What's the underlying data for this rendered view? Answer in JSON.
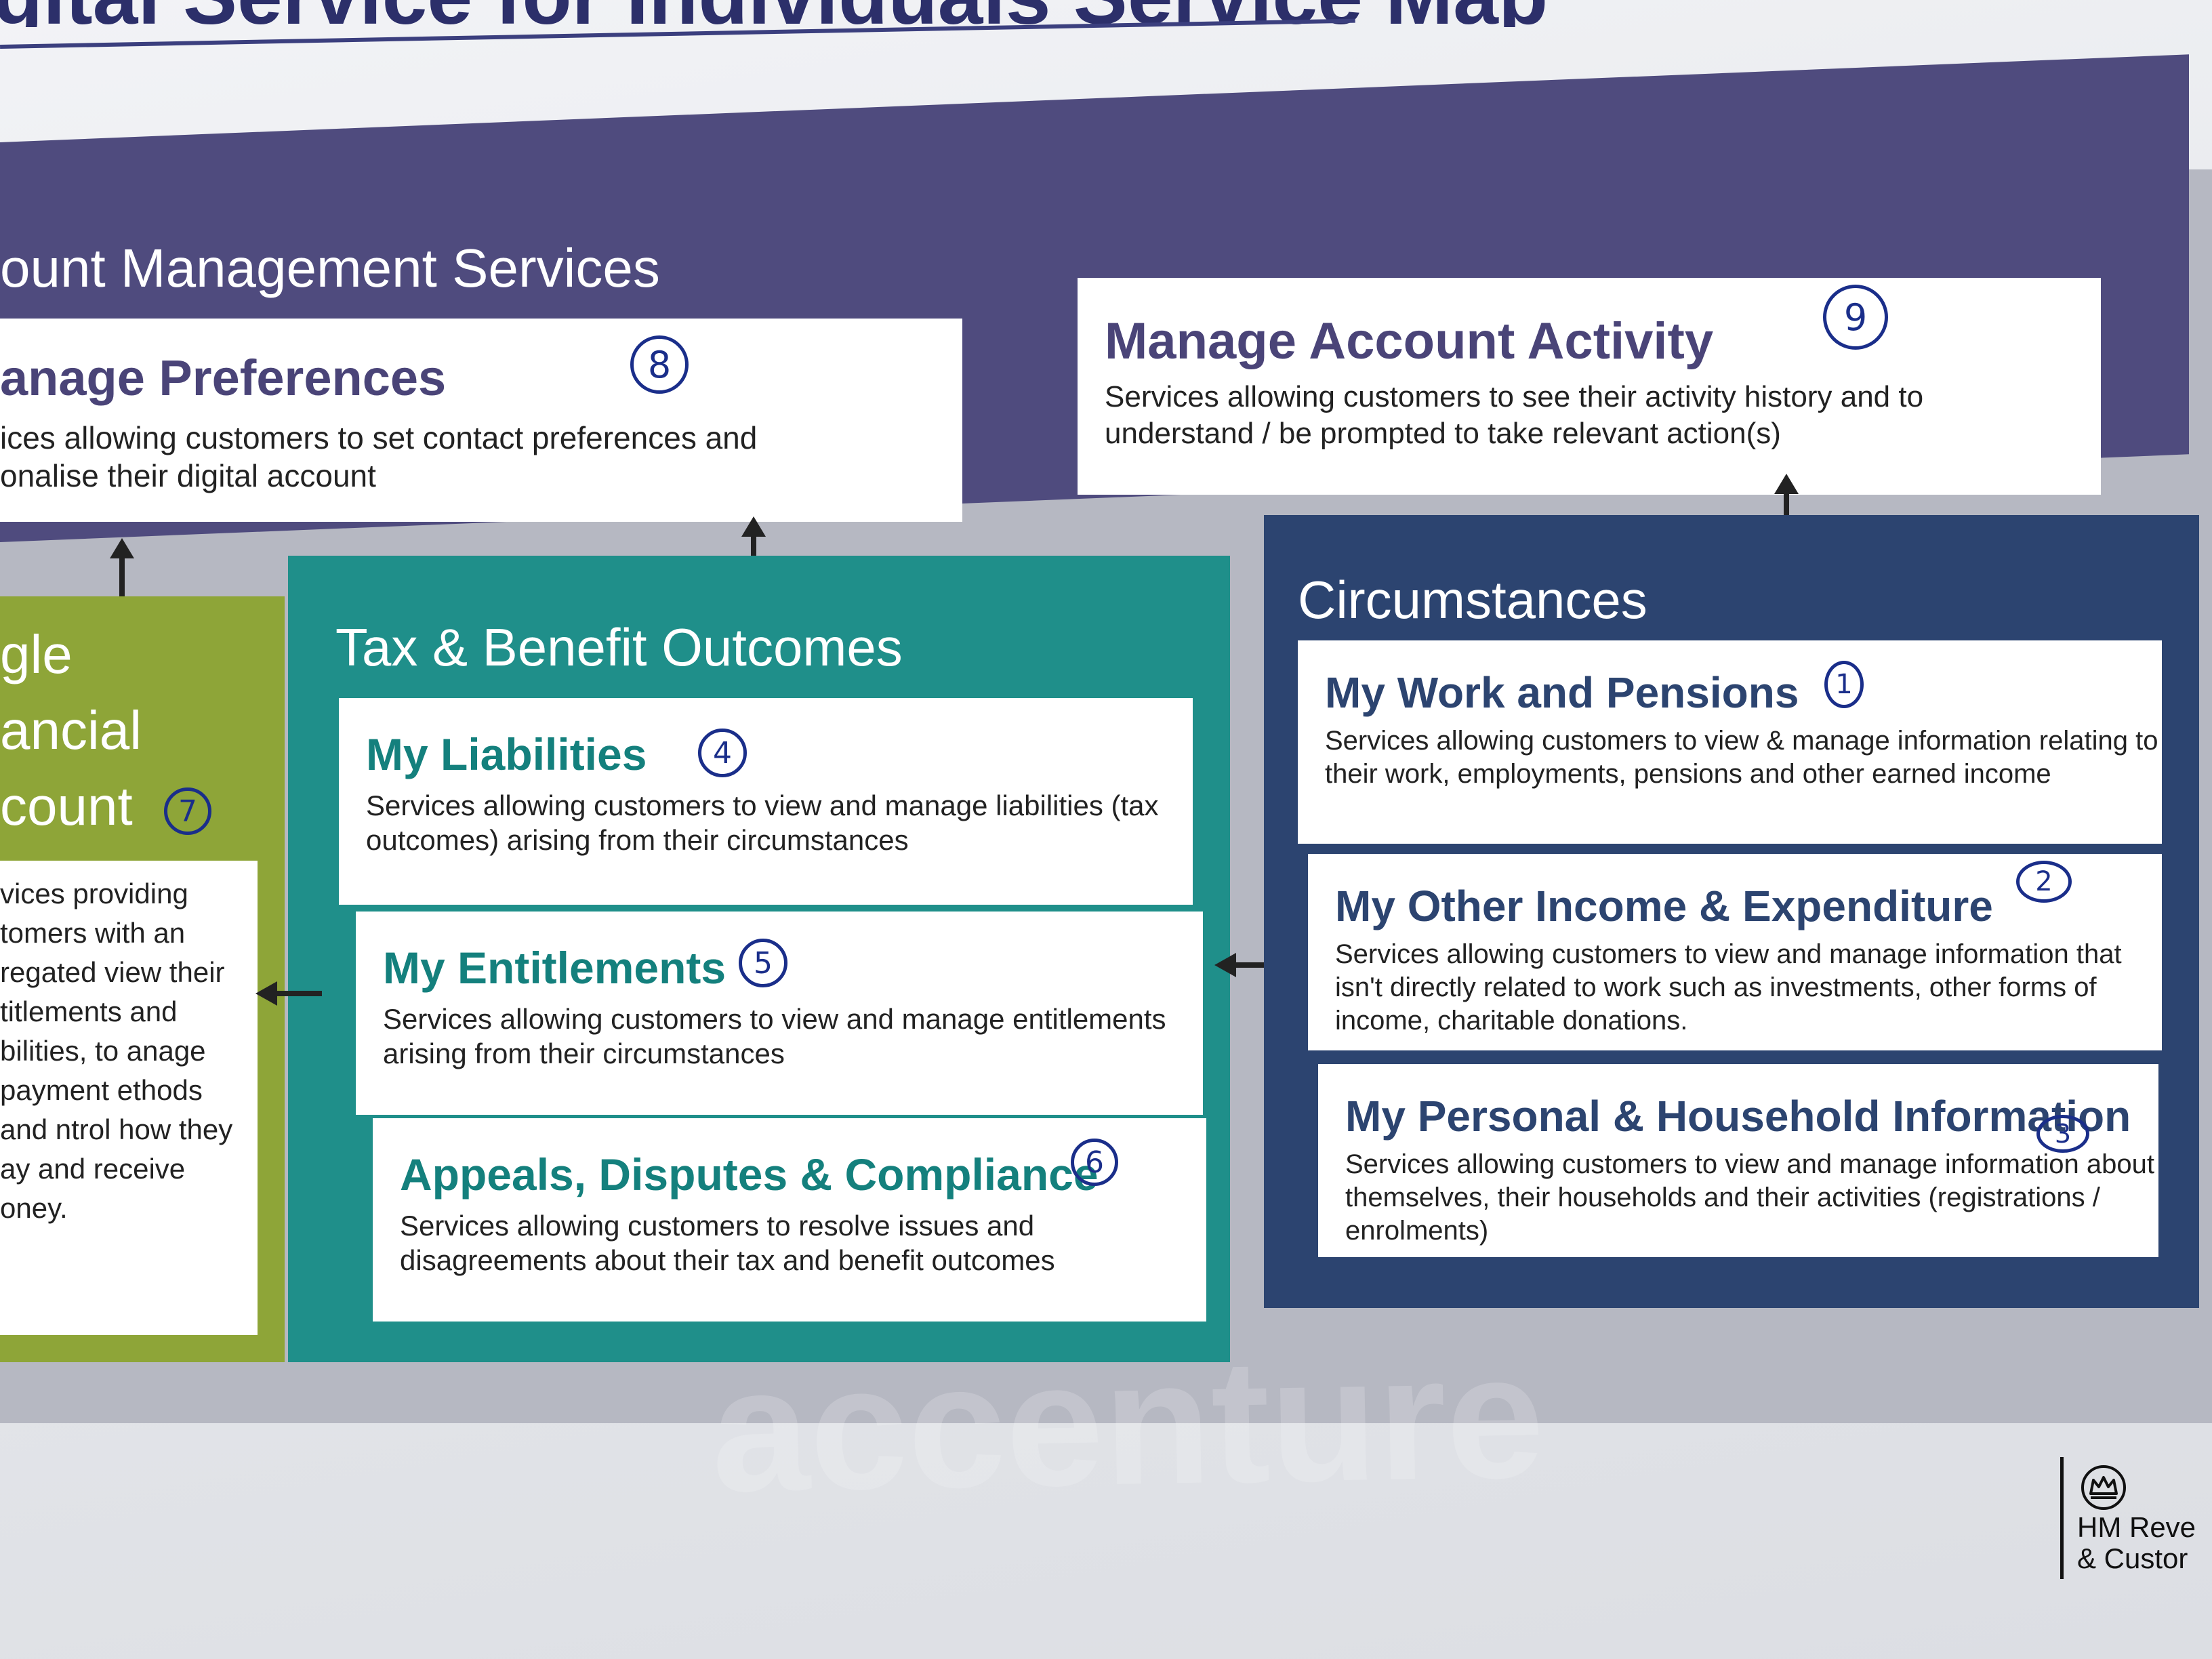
{
  "page_title": "gital Service for Individuals Service Map",
  "account_management": {
    "title": "ount Management Services",
    "manage_preferences": {
      "title": "anage Preferences",
      "desc": "ices allowing customers to set contact preferences and onalise their digital account",
      "number": "8"
    },
    "manage_account_activity": {
      "title": "Manage Account Activity",
      "desc": "Services allowing customers to see their activity history and to understand / be prompted to take relevant action(s)",
      "number": "9"
    }
  },
  "single_financial_account": {
    "title_lines": [
      "gle",
      "ancial",
      "count"
    ],
    "number": "7",
    "desc": "vices providing tomers with an regated view their titlements and bilities, to anage payment ethods and ntrol how they ay and receive oney."
  },
  "tax_benefit_outcomes": {
    "title": "Tax & Benefit Outcomes",
    "liabilities": {
      "title": "My Liabilities",
      "desc": "Services allowing customers to view and manage liabilities (tax outcomes) arising from their circumstances",
      "number": "4"
    },
    "entitlements": {
      "title": "My Entitlements",
      "desc": "Services allowing customers to view and manage entitlements arising from their circumstances",
      "number": "5"
    },
    "appeals": {
      "title": "Appeals, Disputes & Compliance",
      "desc": "Services allowing customers to resolve issues and disagreements about their tax and benefit outcomes",
      "number": "6"
    }
  },
  "circumstances": {
    "title": "Circumstances",
    "work_pensions": {
      "title": "My Work and Pensions",
      "desc": "Services allowing customers to view & manage information relating to their work, employments, pensions and other earned income",
      "number": "1"
    },
    "other_income": {
      "title": "My Other Income & Expenditure",
      "desc": "Services allowing customers to view and manage information that isn't directly related to work such as investments, other forms of income, charitable donations.",
      "number": "2"
    },
    "personal_household": {
      "title": "My Personal & Household Information",
      "desc": "Services allowing customers to view and manage information about themselves, their households and their activities (registrations / enrolments)",
      "number": "3"
    }
  },
  "watermark": "accenture",
  "logo": {
    "line1": "HM Reve",
    "line2": "& Custor"
  },
  "colors": {
    "purple": "#4f4b7e",
    "teal": "#1f8f8a",
    "navy": "#2c4470",
    "green": "#8ea538",
    "grey": "#b6b8c2",
    "handwriting": "#1a2e8a"
  }
}
